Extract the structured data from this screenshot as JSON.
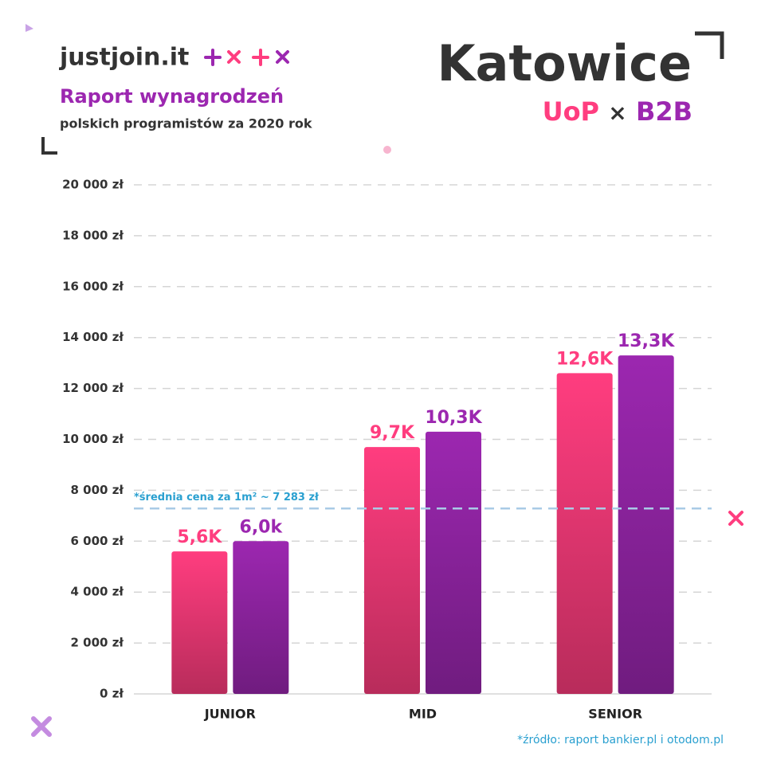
{
  "brand": "justjoin.it",
  "report_title": "Raport wynagrodzeń",
  "report_subtitle": "polskich programistów za 2020 rok",
  "chart_data": {
    "type": "bar",
    "title": "Katowice",
    "title_joiner": "×",
    "categories": [
      "JUNIOR",
      "MID",
      "SENIOR"
    ],
    "series": [
      {
        "name": "UoP",
        "color": "#ff3d7f",
        "values": [
          5600,
          9700,
          12600
        ],
        "value_labels": [
          "5,6K",
          "9,7K",
          "12,6K"
        ]
      },
      {
        "name": "B2B",
        "color": "#9c27b0",
        "values": [
          6000,
          10300,
          13300
        ],
        "value_labels": [
          "6,0k",
          "10,3K",
          "13,3K"
        ]
      }
    ],
    "ylim": [
      0,
      20000
    ],
    "yticks": [
      {
        "value": 0,
        "label": "0 zł"
      },
      {
        "value": 2000,
        "label": "2 000 zł"
      },
      {
        "value": 4000,
        "label": "4 000 zł"
      },
      {
        "value": 6000,
        "label": "6 000 zł"
      },
      {
        "value": 8000,
        "label": "8 000 zł"
      },
      {
        "value": 10000,
        "label": "10 000 zł"
      },
      {
        "value": 12000,
        "label": "12 000 zł"
      },
      {
        "value": 14000,
        "label": "14 000 zł"
      },
      {
        "value": 16000,
        "label": "16 000 zł"
      },
      {
        "value": 18000,
        "label": "18 000 zł"
      },
      {
        "value": 20000,
        "label": "20 000 zł"
      }
    ],
    "grid": true,
    "reference_line": {
      "value": 7283,
      "label": "*średnia cena za 1m² ~ 7 283 zł",
      "color": "#a9cbe6"
    },
    "source": "*źródło: raport bankier.pl i otodom.pl"
  }
}
